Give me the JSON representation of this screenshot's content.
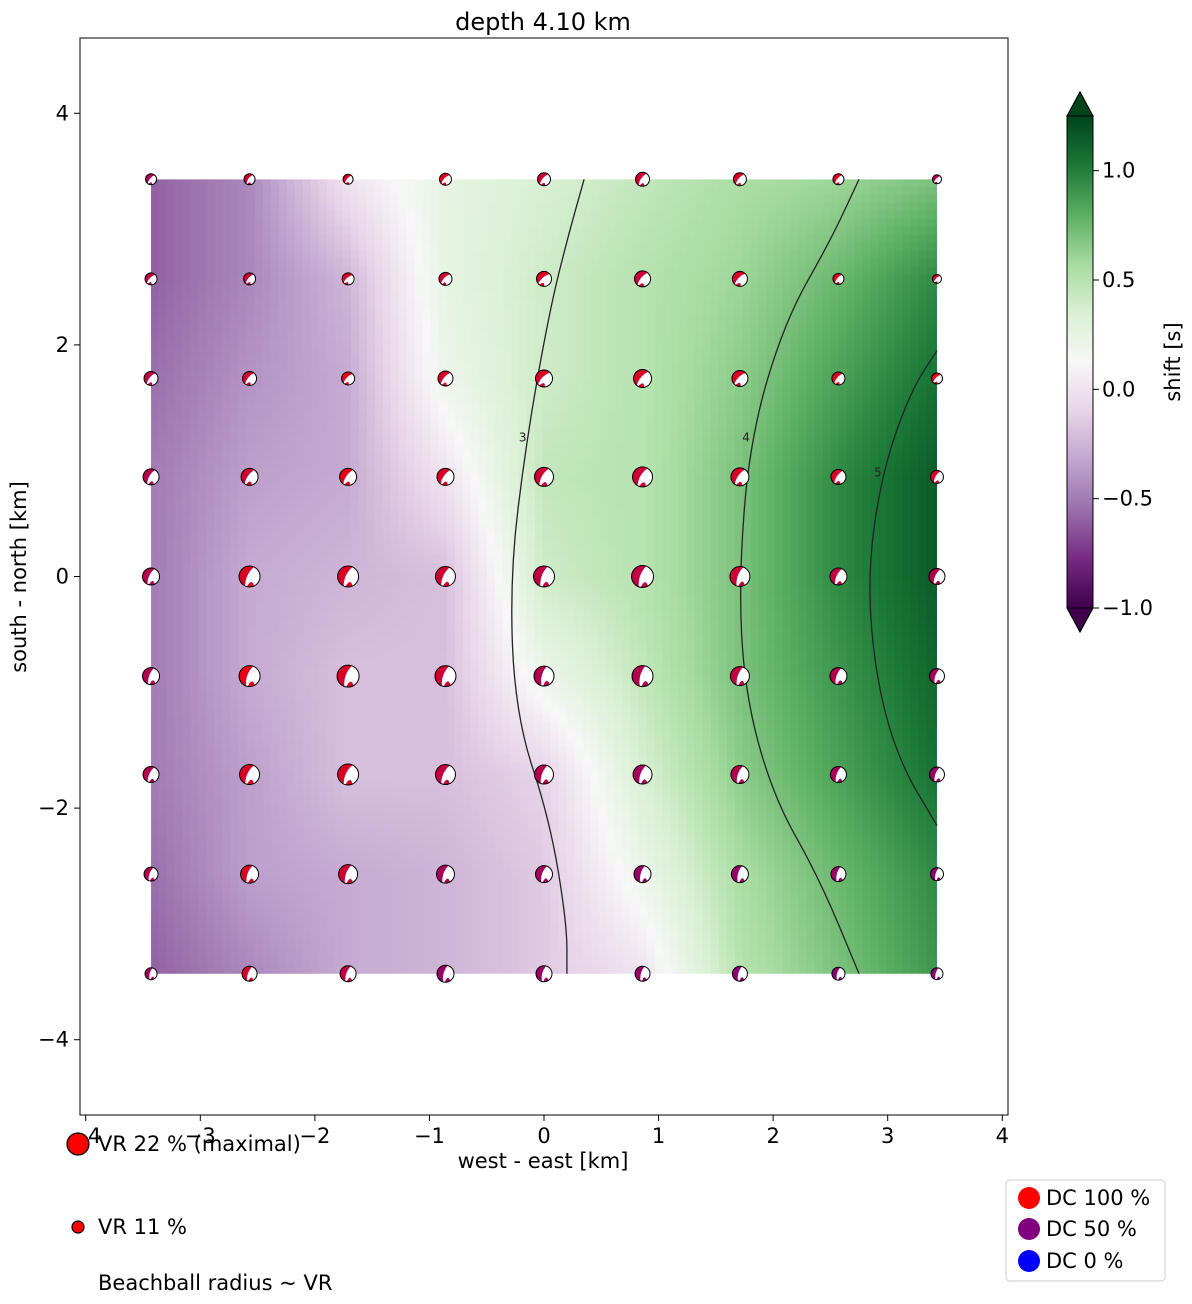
{
  "chart_data": {
    "type": "heatmap",
    "title": "depth  4.10 km",
    "xlabel": "west - east [km]",
    "ylabel": "south - north [km]",
    "xlim": [
      -4.05,
      4.05
    ],
    "ylim": [
      -4.65,
      4.65
    ],
    "x_ticks": [
      -4,
      -3,
      -2,
      -1,
      0,
      1,
      2,
      3,
      4
    ],
    "y_ticks": [
      -4,
      -2,
      0,
      2,
      4
    ],
    "grid": false,
    "colormap": "PRGn",
    "colormap_stops": [
      "#40004b",
      "#762a83",
      "#9970ab",
      "#c2a5cf",
      "#e7d4e8",
      "#f7f7f7",
      "#d9f0d3",
      "#a6dba0",
      "#5aae61",
      "#1b7837",
      "#00441b"
    ],
    "colorbar": {
      "label": "shift [s]",
      "min": -1.0,
      "max": 1.25,
      "ticks": [
        -1.0,
        -0.5,
        0.0,
        0.5,
        1.0
      ],
      "tick_labels": [
        "−1.0",
        "−0.5",
        "0.0",
        "0.5",
        "1.0"
      ],
      "extend": "both"
    },
    "grid_x": [
      -3.43,
      -2.57,
      -1.71,
      -0.86,
      0.0,
      0.86,
      1.71,
      2.57,
      3.43
    ],
    "grid_y": [
      3.43,
      2.57,
      1.71,
      0.86,
      0.0,
      -0.86,
      -1.71,
      -2.57,
      -3.43
    ],
    "shift_field_s": [
      [
        -0.6,
        -0.45,
        0.0,
        0.25,
        0.35,
        0.45,
        0.55,
        0.6,
        0.7
      ],
      [
        -0.6,
        -0.45,
        -0.25,
        0.25,
        0.4,
        0.5,
        0.6,
        0.75,
        0.95
      ],
      [
        -0.55,
        -0.4,
        -0.3,
        0.2,
        0.4,
        0.5,
        0.65,
        0.85,
        1.05
      ],
      [
        -0.5,
        -0.35,
        -0.3,
        0.0,
        0.45,
        0.5,
        0.7,
        0.95,
        1.15
      ],
      [
        -0.5,
        -0.3,
        -0.25,
        -0.2,
        0.4,
        0.5,
        0.7,
        0.95,
        1.15
      ],
      [
        -0.5,
        -0.3,
        -0.2,
        -0.2,
        0.2,
        0.45,
        0.7,
        0.9,
        1.1
      ],
      [
        -0.5,
        -0.35,
        -0.2,
        -0.2,
        -0.1,
        0.35,
        0.65,
        0.85,
        1.05
      ],
      [
        -0.55,
        -0.35,
        -0.3,
        -0.25,
        -0.15,
        0.2,
        0.55,
        0.75,
        0.95
      ],
      [
        -0.6,
        -0.45,
        -0.3,
        -0.25,
        -0.15,
        0.0,
        0.5,
        0.7,
        0.9
      ]
    ],
    "contours": [
      {
        "label": "3",
        "points": [
          [
            0.35,
            3.43
          ],
          [
            0.2,
            2.9
          ],
          [
            0.05,
            2.3
          ],
          [
            -0.15,
            1.2
          ],
          [
            -0.3,
            0.0
          ],
          [
            -0.25,
            -1.2
          ],
          [
            0.05,
            -2.1
          ],
          [
            0.2,
            -3.0
          ],
          [
            0.2,
            -3.43
          ]
        ]
      },
      {
        "label": "4",
        "points": [
          [
            2.75,
            3.43
          ],
          [
            2.5,
            2.9
          ],
          [
            2.1,
            2.2
          ],
          [
            1.8,
            1.2
          ],
          [
            1.7,
            0.0
          ],
          [
            1.75,
            -1.0
          ],
          [
            2.0,
            -1.9
          ],
          [
            2.4,
            -2.6
          ],
          [
            2.75,
            -3.43
          ]
        ]
      },
      {
        "label": "5",
        "points": [
          [
            3.43,
            1.95
          ],
          [
            3.2,
            1.6
          ],
          [
            2.95,
            0.9
          ],
          [
            2.82,
            0.0
          ],
          [
            2.9,
            -0.9
          ],
          [
            3.1,
            -1.6
          ],
          [
            3.43,
            -2.15
          ]
        ]
      }
    ],
    "beachballs": [
      [
        {
          "vr": 11,
          "dc": 70,
          "strike": 40
        },
        {
          "vr": 11,
          "dc": 80,
          "strike": 35
        },
        {
          "vr": 10,
          "dc": 85,
          "strike": 40
        },
        {
          "vr": 12,
          "dc": 85,
          "strike": 45
        },
        {
          "vr": 13,
          "dc": 80,
          "strike": 40
        },
        {
          "vr": 14,
          "dc": 80,
          "strike": 35
        },
        {
          "vr": 13,
          "dc": 85,
          "strike": 40
        },
        {
          "vr": 11,
          "dc": 90,
          "strike": 40
        },
        {
          "vr": 9,
          "dc": 70,
          "strike": 45
        }
      ],
      [
        {
          "vr": 12,
          "dc": 75,
          "strike": 45
        },
        {
          "vr": 12,
          "dc": 80,
          "strike": 40
        },
        {
          "vr": 12,
          "dc": 85,
          "strike": 50
        },
        {
          "vr": 13,
          "dc": 80,
          "strike": 45
        },
        {
          "vr": 15,
          "dc": 85,
          "strike": 50
        },
        {
          "vr": 16,
          "dc": 80,
          "strike": 40
        },
        {
          "vr": 15,
          "dc": 85,
          "strike": 45
        },
        {
          "vr": 11,
          "dc": 90,
          "strike": 40
        },
        {
          "vr": 9,
          "dc": 85,
          "strike": 45
        }
      ],
      [
        {
          "vr": 14,
          "dc": 75,
          "strike": 40
        },
        {
          "vr": 14,
          "dc": 80,
          "strike": 40
        },
        {
          "vr": 13,
          "dc": 90,
          "strike": 45
        },
        {
          "vr": 15,
          "dc": 85,
          "strike": 40
        },
        {
          "vr": 17,
          "dc": 85,
          "strike": 45
        },
        {
          "vr": 18,
          "dc": 85,
          "strike": 40
        },
        {
          "vr": 16,
          "dc": 85,
          "strike": 45
        },
        {
          "vr": 13,
          "dc": 90,
          "strike": 40
        },
        {
          "vr": 11,
          "dc": 90,
          "strike": 45
        }
      ],
      [
        {
          "vr": 16,
          "dc": 70,
          "strike": 30
        },
        {
          "vr": 17,
          "dc": 80,
          "strike": 35
        },
        {
          "vr": 17,
          "dc": 90,
          "strike": 35
        },
        {
          "vr": 17,
          "dc": 85,
          "strike": 35
        },
        {
          "vr": 19,
          "dc": 80,
          "strike": 30
        },
        {
          "vr": 20,
          "dc": 80,
          "strike": 30
        },
        {
          "vr": 18,
          "dc": 85,
          "strike": 35
        },
        {
          "vr": 15,
          "dc": 85,
          "strike": 35
        },
        {
          "vr": 13,
          "dc": 85,
          "strike": 30
        }
      ],
      [
        {
          "vr": 17,
          "dc": 70,
          "strike": 25
        },
        {
          "vr": 21,
          "dc": 85,
          "strike": 25
        },
        {
          "vr": 21,
          "dc": 85,
          "strike": 25
        },
        {
          "vr": 20,
          "dc": 80,
          "strike": 25
        },
        {
          "vr": 21,
          "dc": 75,
          "strike": 20
        },
        {
          "vr": 22,
          "dc": 75,
          "strike": 20
        },
        {
          "vr": 20,
          "dc": 80,
          "strike": 20
        },
        {
          "vr": 17,
          "dc": 75,
          "strike": 25
        },
        {
          "vr": 16,
          "dc": 70,
          "strike": 25
        }
      ],
      [
        {
          "vr": 17,
          "dc": 70,
          "strike": 20
        },
        {
          "vr": 21,
          "dc": 90,
          "strike": 20
        },
        {
          "vr": 22,
          "dc": 85,
          "strike": 20
        },
        {
          "vr": 21,
          "dc": 80,
          "strike": 20
        },
        {
          "vr": 20,
          "dc": 70,
          "strike": 15
        },
        {
          "vr": 21,
          "dc": 70,
          "strike": 15
        },
        {
          "vr": 19,
          "dc": 75,
          "strike": 20
        },
        {
          "vr": 17,
          "dc": 70,
          "strike": 20
        },
        {
          "vr": 15,
          "dc": 65,
          "strike": 20
        }
      ],
      [
        {
          "vr": 16,
          "dc": 70,
          "strike": 25
        },
        {
          "vr": 20,
          "dc": 85,
          "strike": 25
        },
        {
          "vr": 21,
          "dc": 85,
          "strike": 25
        },
        {
          "vr": 20,
          "dc": 75,
          "strike": 25
        },
        {
          "vr": 19,
          "dc": 70,
          "strike": 20
        },
        {
          "vr": 19,
          "dc": 65,
          "strike": 20
        },
        {
          "vr": 18,
          "dc": 70,
          "strike": 20
        },
        {
          "vr": 16,
          "dc": 65,
          "strike": 20
        },
        {
          "vr": 15,
          "dc": 60,
          "strike": 20
        }
      ],
      [
        {
          "vr": 14,
          "dc": 70,
          "strike": 20
        },
        {
          "vr": 18,
          "dc": 85,
          "strike": 20
        },
        {
          "vr": 19,
          "dc": 80,
          "strike": 20
        },
        {
          "vr": 18,
          "dc": 65,
          "strike": 20
        },
        {
          "vr": 17,
          "dc": 65,
          "strike": 20
        },
        {
          "vr": 17,
          "dc": 60,
          "strike": 15
        },
        {
          "vr": 17,
          "dc": 60,
          "strike": 15
        },
        {
          "vr": 15,
          "dc": 60,
          "strike": 15
        },
        {
          "vr": 13,
          "dc": 55,
          "strike": 15
        }
      ],
      [
        {
          "vr": 12,
          "dc": 65,
          "strike": 15
        },
        {
          "vr": 15,
          "dc": 85,
          "strike": 20
        },
        {
          "vr": 16,
          "dc": 75,
          "strike": 20
        },
        {
          "vr": 17,
          "dc": 60,
          "strike": 15
        },
        {
          "vr": 16,
          "dc": 60,
          "strike": 15
        },
        {
          "vr": 15,
          "dc": 60,
          "strike": 15
        },
        {
          "vr": 15,
          "dc": 55,
          "strike": 15
        },
        {
          "vr": 13,
          "dc": 55,
          "strike": 15
        },
        {
          "vr": 12,
          "dc": 55,
          "strike": 15
        }
      ]
    ],
    "vr_legend": [
      {
        "label": "VR 22 % (maximal)",
        "vr": 22
      },
      {
        "label": "VR 11 %",
        "vr": 11
      }
    ],
    "vr_note": "Beachball radius ~ VR",
    "dc_legend": [
      {
        "label": "DC 100 %",
        "color": "#ff0000"
      },
      {
        "label": "DC 50 %",
        "color": "#800080"
      },
      {
        "label": "DC 0 %",
        "color": "#0000ff"
      }
    ]
  }
}
